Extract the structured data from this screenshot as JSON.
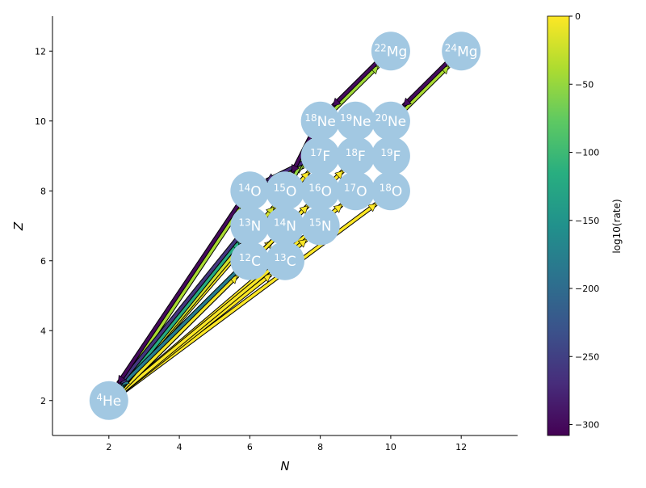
{
  "chart_data": {
    "type": "scatter",
    "xlabel": "N",
    "ylabel": "Z",
    "xlim": [
      0.4,
      13.6
    ],
    "ylim": [
      1.0,
      13.0
    ],
    "xticks": [
      2,
      4,
      6,
      8,
      10,
      12
    ],
    "yticks": [
      2,
      4,
      6,
      8,
      10,
      12
    ],
    "grid": false,
    "node_color": "#a2c8e2",
    "nuclei": [
      {
        "id": "he4",
        "mass": "4",
        "sym": "He",
        "N": 2,
        "Z": 2
      },
      {
        "id": "c12",
        "mass": "12",
        "sym": "C",
        "N": 6,
        "Z": 6
      },
      {
        "id": "c13",
        "mass": "13",
        "sym": "C",
        "N": 7,
        "Z": 6
      },
      {
        "id": "n13",
        "mass": "13",
        "sym": "N",
        "N": 6,
        "Z": 7
      },
      {
        "id": "n14",
        "mass": "14",
        "sym": "N",
        "N": 7,
        "Z": 7
      },
      {
        "id": "n15",
        "mass": "15",
        "sym": "N",
        "N": 8,
        "Z": 7
      },
      {
        "id": "o14",
        "mass": "14",
        "sym": "O",
        "N": 6,
        "Z": 8
      },
      {
        "id": "o15",
        "mass": "15",
        "sym": "O",
        "N": 7,
        "Z": 8
      },
      {
        "id": "o16",
        "mass": "16",
        "sym": "O",
        "N": 8,
        "Z": 8
      },
      {
        "id": "o17",
        "mass": "17",
        "sym": "O",
        "N": 9,
        "Z": 8
      },
      {
        "id": "o18",
        "mass": "18",
        "sym": "O",
        "N": 10,
        "Z": 8
      },
      {
        "id": "f17",
        "mass": "17",
        "sym": "F",
        "N": 8,
        "Z": 9
      },
      {
        "id": "f18",
        "mass": "18",
        "sym": "F",
        "N": 9,
        "Z": 9
      },
      {
        "id": "f19",
        "mass": "19",
        "sym": "F",
        "N": 10,
        "Z": 9
      },
      {
        "id": "ne18",
        "mass": "18",
        "sym": "Ne",
        "N": 8,
        "Z": 10
      },
      {
        "id": "ne19",
        "mass": "19",
        "sym": "Ne",
        "N": 9,
        "Z": 10
      },
      {
        "id": "ne20",
        "mass": "20",
        "sym": "Ne",
        "N": 10,
        "Z": 10
      },
      {
        "id": "mg22",
        "mass": "22",
        "sym": "Mg",
        "N": 10,
        "Z": 12
      },
      {
        "id": "mg24",
        "mass": "24",
        "sym": "Mg",
        "N": 12,
        "Z": 12
      }
    ],
    "links": [
      {
        "from": "he4",
        "to": "o14",
        "rate": -40
      },
      {
        "from": "o14",
        "to": "he4",
        "rate": -300
      },
      {
        "from": "he4",
        "to": "o15",
        "rate": -20
      },
      {
        "from": "he4",
        "to": "n13",
        "rate": -120
      },
      {
        "from": "n13",
        "to": "he4",
        "rate": -260
      },
      {
        "from": "he4",
        "to": "c12",
        "rate": -5
      },
      {
        "from": "c12",
        "to": "he4",
        "rate": -180
      },
      {
        "from": "he4",
        "to": "n14",
        "rate": -2
      },
      {
        "from": "he4",
        "to": "c13",
        "rate": -1
      },
      {
        "from": "he4",
        "to": "o16",
        "rate": -3
      },
      {
        "from": "he4",
        "to": "n15",
        "rate": -2
      },
      {
        "from": "he4",
        "to": "o17",
        "rate": -1
      },
      {
        "from": "he4",
        "to": "o18",
        "rate": 0
      },
      {
        "from": "he4",
        "to": "f17",
        "rate": -2
      },
      {
        "from": "he4",
        "to": "f18",
        "rate": -1
      },
      {
        "from": "c12",
        "to": "n13",
        "rate": -10
      },
      {
        "from": "n13",
        "to": "c12",
        "rate": -290
      },
      {
        "from": "c13",
        "to": "n14",
        "rate": -15
      },
      {
        "from": "n14",
        "to": "c13",
        "rate": -230
      },
      {
        "from": "n13",
        "to": "o14",
        "rate": -30
      },
      {
        "from": "n14",
        "to": "o15",
        "rate": -110
      },
      {
        "from": "o15",
        "to": "n14",
        "rate": -280
      },
      {
        "from": "n15",
        "to": "o16",
        "rate": -8
      },
      {
        "from": "o16",
        "to": "n15",
        "rate": -200
      },
      {
        "from": "o14",
        "to": "f17",
        "rate": -45
      },
      {
        "from": "f17",
        "to": "o14",
        "rate": -270
      },
      {
        "from": "o15",
        "to": "ne18",
        "rate": -50
      },
      {
        "from": "ne18",
        "to": "o15",
        "rate": -300
      },
      {
        "from": "o16",
        "to": "f17",
        "rate": -6
      },
      {
        "from": "f17",
        "to": "o16",
        "rate": -240
      },
      {
        "from": "o17",
        "to": "f18",
        "rate": -4
      },
      {
        "from": "f18",
        "to": "o17",
        "rate": -300
      },
      {
        "from": "o18",
        "to": "f19",
        "rate": -3
      },
      {
        "from": "f19",
        "to": "o18",
        "rate": -220
      },
      {
        "from": "f17",
        "to": "ne18",
        "rate": -12
      },
      {
        "from": "f18",
        "to": "ne19",
        "rate": -8
      },
      {
        "from": "f19",
        "to": "ne20",
        "rate": -5
      },
      {
        "from": "ne20",
        "to": "f19",
        "rate": -250
      },
      {
        "from": "ne18",
        "to": "mg22",
        "rate": -45
      },
      {
        "from": "mg22",
        "to": "ne18",
        "rate": -300
      },
      {
        "from": "ne20",
        "to": "mg24",
        "rate": -40
      },
      {
        "from": "mg24",
        "to": "ne20",
        "rate": -300
      }
    ],
    "colorbar": {
      "label": "log10(rate)",
      "min": -308,
      "max": 0,
      "ticks": [
        0,
        -50,
        -100,
        -150,
        -200,
        -250,
        -300
      ],
      "colormap": "viridis"
    }
  }
}
